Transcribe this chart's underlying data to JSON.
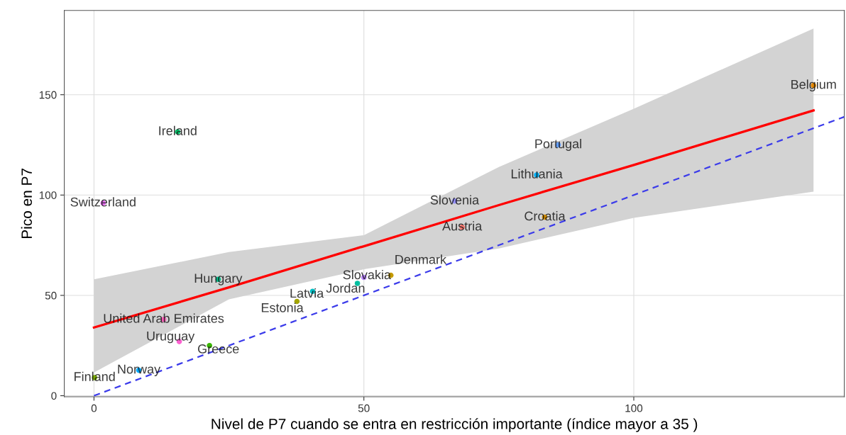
{
  "chart_data": {
    "type": "scatter",
    "xlabel": "Nivel de P7 cuando se entra en restricción importante (índice mayor a 35 )",
    "ylabel": "Pico en P7",
    "xlim": [
      -5.5,
      139
    ],
    "ylim": [
      -0.5,
      192
    ],
    "xticks": [
      0,
      50,
      100
    ],
    "yticks": [
      0,
      50,
      100,
      150
    ],
    "grid": true,
    "series": [
      {
        "marker": "circle",
        "x": [
          15.5,
          1.7,
          23,
          12.9,
          15.8,
          21.4,
          8.3,
          0.1,
          40.5,
          37.6,
          48.8,
          50,
          55,
          66.8,
          68.2,
          83.5,
          82,
          86,
          133.3
        ],
        "values": [
          131.5,
          96,
          58,
          38,
          27,
          25,
          12.7,
          9,
          52,
          47,
          56,
          59,
          60,
          97,
          84,
          89,
          110,
          125,
          154.6
        ],
        "colors": [
          "#00be67",
          "#e76bf3",
          "#00c08b",
          "#ff62bc",
          "#fd61d1",
          "#39b600",
          "#00a9ff",
          "#7cae00",
          "#00bfc4",
          "#a3a500",
          "#00bfa0",
          "#b983ff",
          "#c49a00",
          "#9590ff",
          "#f8766d",
          "#d89000",
          "#00b0f6",
          "#619cff",
          "#e58700"
        ]
      },
      {
        "type": "line",
        "x": [
          0,
          25,
          50,
          75,
          100,
          133.3
        ],
        "values": [
          34,
          54,
          74.5,
          95,
          115,
          142.2
        ],
        "lower": [
          11.6,
          48,
          63,
          73.4,
          88.6,
          101.7
        ],
        "upper": [
          58,
          71.6,
          80,
          114,
          143,
          183
        ],
        "color": "#ff0000",
        "marker": "none",
        "line_style": "solid"
      },
      {
        "type": "line",
        "x": [
          0,
          139
        ],
        "values": [
          0,
          139
        ],
        "color": "#3b3bea",
        "marker": "none",
        "line_style": "dashed"
      }
    ],
    "annotations": [
      {
        "text": "Ireland",
        "x": 15.5,
        "y": 131.5
      },
      {
        "text": "Switzerland",
        "x": 1.7,
        "y": 96
      },
      {
        "text": "Hungary",
        "x": 23,
        "y": 58
      },
      {
        "text": "United Arab Emirates",
        "x": 12.9,
        "y": 38
      },
      {
        "text": "Uruguay",
        "x": 15.8,
        "y": 27
      },
      {
        "text": "Greece",
        "x": 21.4,
        "y": 25
      },
      {
        "text": "Norway",
        "x": 8.3,
        "y": 12.7
      },
      {
        "text": "Finland",
        "x": 0.1,
        "y": 9
      },
      {
        "text": "Latvia",
        "x": 40.5,
        "y": 52
      },
      {
        "text": "Estonia",
        "x": 37.6,
        "y": 47
      },
      {
        "text": "Jordan",
        "x": 48.8,
        "y": 56
      },
      {
        "text": "Slovakia",
        "x": 50,
        "y": 59
      },
      {
        "text": "Denmark",
        "x": 55,
        "y": 60
      },
      {
        "text": "Slovenia",
        "x": 66.8,
        "y": 97
      },
      {
        "text": "Austria",
        "x": 68.2,
        "y": 84
      },
      {
        "text": "Croatia",
        "x": 83.5,
        "y": 89
      },
      {
        "text": "Lithuania",
        "x": 82,
        "y": 110
      },
      {
        "text": "Portugal",
        "x": 86,
        "y": 125
      },
      {
        "text": "Belgium",
        "x": 133.3,
        "y": 154.6
      }
    ]
  }
}
